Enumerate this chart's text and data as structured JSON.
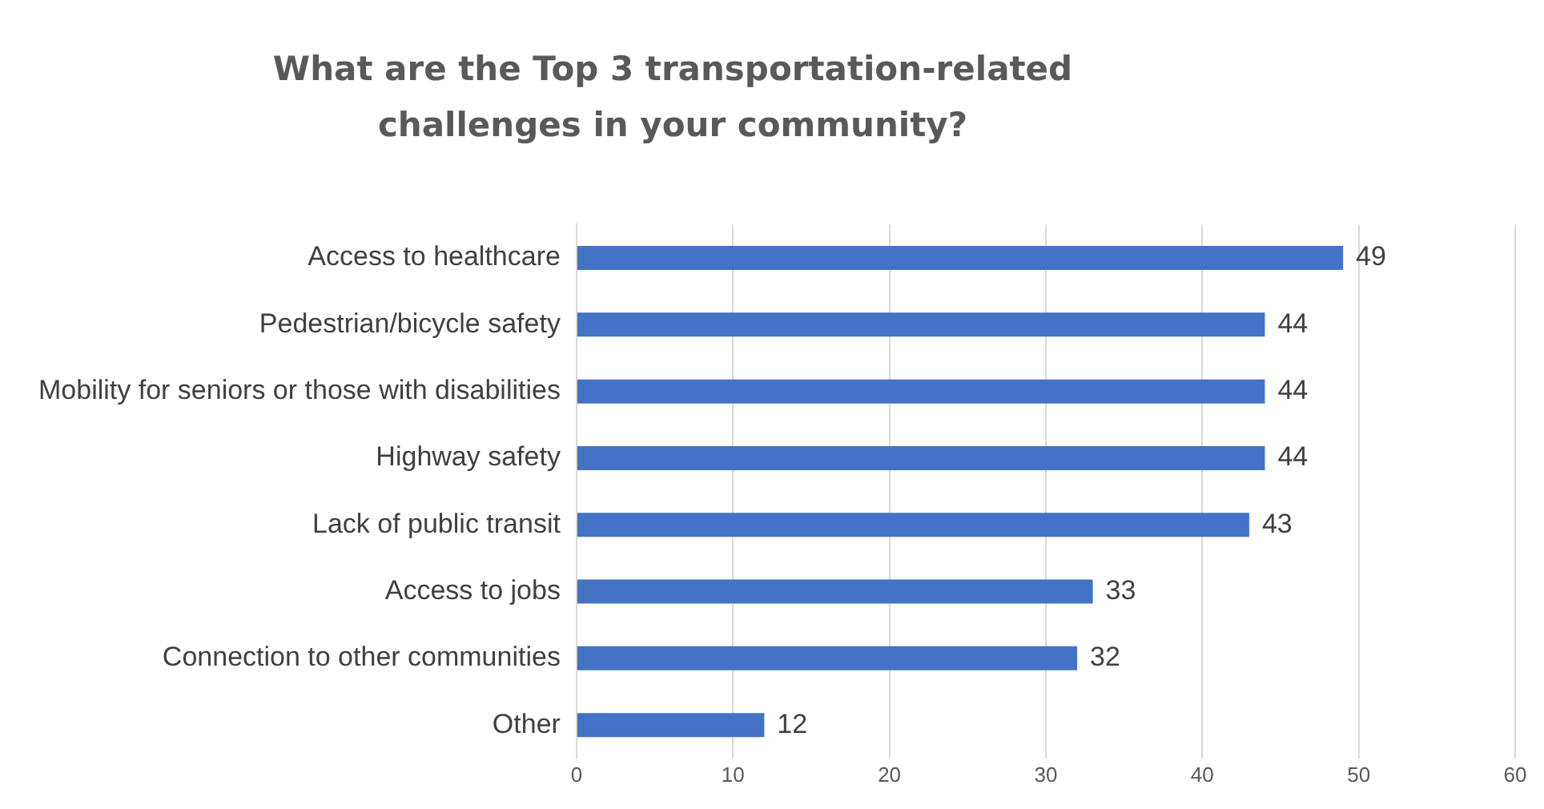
{
  "chart_data": {
    "type": "bar",
    "orientation": "horizontal",
    "title": "What are the Top 3 transportation-related challenges in your community?",
    "categories": [
      "Access to healthcare",
      "Pedestrian/bicycle safety",
      "Mobility for seniors or those with disabilities",
      "Highway safety",
      "Lack of public transit",
      "Access to jobs",
      "Connection to other communities",
      "Other"
    ],
    "values": [
      49,
      44,
      44,
      44,
      43,
      33,
      32,
      12
    ],
    "color": "#4472c4",
    "xlim": [
      0,
      60
    ],
    "xticks": [
      0,
      10,
      20,
      30,
      40,
      50,
      60
    ],
    "grid": "x",
    "data_labels": true
  }
}
